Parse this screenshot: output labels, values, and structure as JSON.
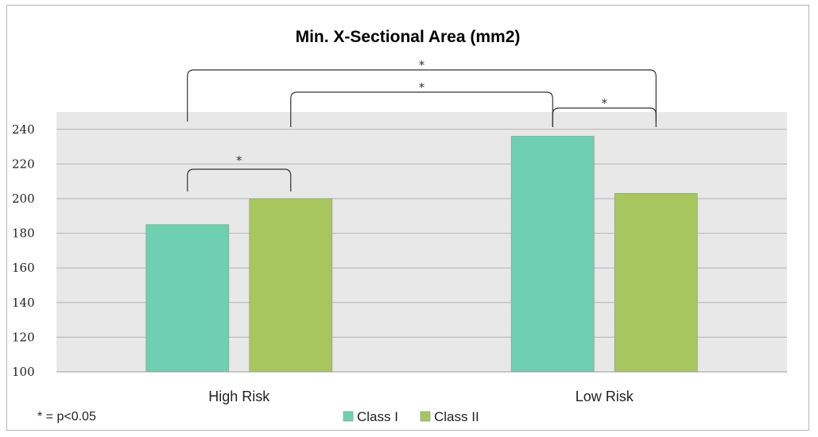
{
  "chart_data": {
    "type": "bar",
    "title": "Min. X-Sectional Area (mm2)",
    "categories": [
      "High Risk",
      "Low Risk"
    ],
    "series": [
      {
        "name": "Class I",
        "color": "#6fcfb1",
        "values": [
          185,
          236
        ]
      },
      {
        "name": "Class II",
        "color": "#a8c65e",
        "values": [
          200,
          203
        ]
      }
    ],
    "ylim": [
      100,
      250
    ],
    "yticks": [
      "100",
      "120",
      "140",
      "160",
      "180",
      "200",
      "220",
      "240"
    ],
    "grid": true,
    "legend": "bottom-center",
    "significance": [
      {
        "from": [
          0,
          0
        ],
        "to": [
          0,
          1
        ],
        "label": "*"
      },
      {
        "from": [
          0,
          0
        ],
        "to": [
          1,
          1
        ],
        "label": "*"
      },
      {
        "from": [
          0,
          1
        ],
        "to": [
          1,
          0
        ],
        "label": "*"
      },
      {
        "from": [
          1,
          0
        ],
        "to": [
          1,
          1
        ],
        "label": "*"
      }
    ],
    "footnote": "* = p<0.05"
  }
}
